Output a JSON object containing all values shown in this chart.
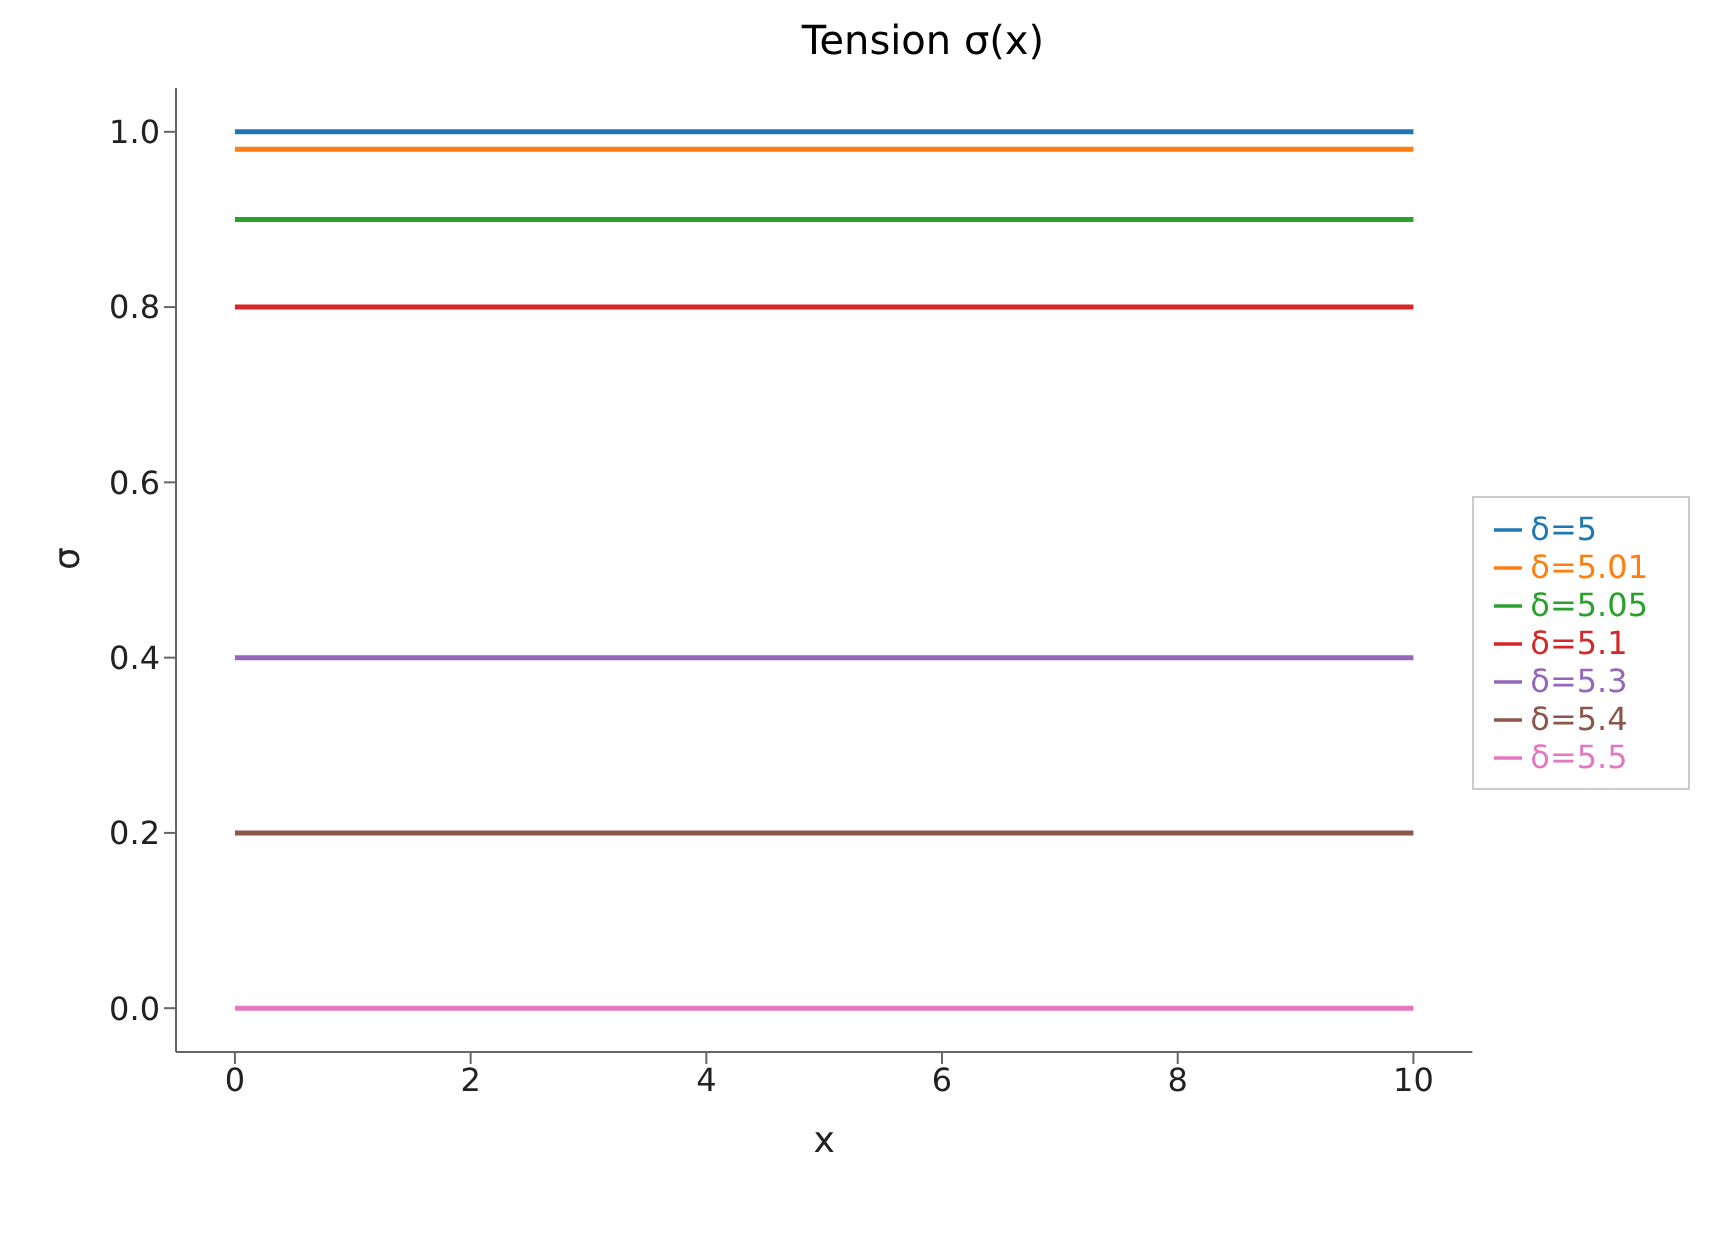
{
  "chart_data": {
    "type": "line",
    "title": "Tension σ(x)",
    "xlabel": "x",
    "ylabel": "σ",
    "x": [
      0,
      10
    ],
    "series": [
      {
        "name": "δ=5",
        "color": "#1f77b4",
        "values": [
          1.0,
          1.0
        ]
      },
      {
        "name": "δ=5.01",
        "color": "#ff7f0e",
        "values": [
          0.98,
          0.98
        ]
      },
      {
        "name": "δ=5.05",
        "color": "#2ca02c",
        "values": [
          0.9,
          0.9
        ]
      },
      {
        "name": "δ=5.1",
        "color": "#d62728",
        "values": [
          0.8,
          0.8
        ]
      },
      {
        "name": "δ=5.3",
        "color": "#9467bd",
        "values": [
          0.4,
          0.4
        ]
      },
      {
        "name": "δ=5.4",
        "color": "#8c564b",
        "values": [
          0.2,
          0.2
        ]
      },
      {
        "name": "δ=5.5",
        "color": "#e377c2",
        "values": [
          0.0,
          0.0
        ]
      }
    ],
    "xlim": [
      -0.5,
      10.5
    ],
    "xticks": [
      0,
      2,
      4,
      6,
      8,
      10
    ],
    "ylim": [
      -0.05,
      1.05
    ],
    "yticks": [
      {
        "value": 0,
        "label": "0.0"
      },
      {
        "value": 0.2,
        "label": "0.2"
      },
      {
        "value": 0.4,
        "label": "0.4"
      },
      {
        "value": 0.6,
        "label": "0.6"
      },
      {
        "value": 0.8,
        "label": "0.8"
      },
      {
        "value": 1.0,
        "label": "1.0"
      }
    ],
    "legend": "right",
    "grid": false,
    "marker": "none",
    "line_style": "solid"
  }
}
